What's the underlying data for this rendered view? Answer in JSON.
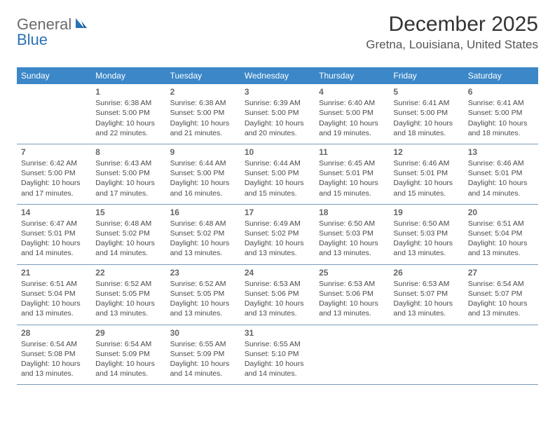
{
  "brand": {
    "part1": "General",
    "part2": "Blue"
  },
  "title": "December 2025",
  "location": "Gretna, Louisiana, United States",
  "colors": {
    "header_bg": "#3b87c8",
    "header_text": "#ffffff",
    "border": "#7a9bb8",
    "brand_gray": "#6a6a6a",
    "brand_blue": "#2a72b5",
    "title_color": "#333333",
    "text": "#4a4a4a"
  },
  "weekdays": [
    "Sunday",
    "Monday",
    "Tuesday",
    "Wednesday",
    "Thursday",
    "Friday",
    "Saturday"
  ],
  "weeks": [
    [
      null,
      {
        "d": "1",
        "sr": "6:38 AM",
        "ss": "5:00 PM",
        "dl": "10 hours and 22 minutes."
      },
      {
        "d": "2",
        "sr": "6:38 AM",
        "ss": "5:00 PM",
        "dl": "10 hours and 21 minutes."
      },
      {
        "d": "3",
        "sr": "6:39 AM",
        "ss": "5:00 PM",
        "dl": "10 hours and 20 minutes."
      },
      {
        "d": "4",
        "sr": "6:40 AM",
        "ss": "5:00 PM",
        "dl": "10 hours and 19 minutes."
      },
      {
        "d": "5",
        "sr": "6:41 AM",
        "ss": "5:00 PM",
        "dl": "10 hours and 18 minutes."
      },
      {
        "d": "6",
        "sr": "6:41 AM",
        "ss": "5:00 PM",
        "dl": "10 hours and 18 minutes."
      }
    ],
    [
      {
        "d": "7",
        "sr": "6:42 AM",
        "ss": "5:00 PM",
        "dl": "10 hours and 17 minutes."
      },
      {
        "d": "8",
        "sr": "6:43 AM",
        "ss": "5:00 PM",
        "dl": "10 hours and 17 minutes."
      },
      {
        "d": "9",
        "sr": "6:44 AM",
        "ss": "5:00 PM",
        "dl": "10 hours and 16 minutes."
      },
      {
        "d": "10",
        "sr": "6:44 AM",
        "ss": "5:00 PM",
        "dl": "10 hours and 15 minutes."
      },
      {
        "d": "11",
        "sr": "6:45 AM",
        "ss": "5:01 PM",
        "dl": "10 hours and 15 minutes."
      },
      {
        "d": "12",
        "sr": "6:46 AM",
        "ss": "5:01 PM",
        "dl": "10 hours and 15 minutes."
      },
      {
        "d": "13",
        "sr": "6:46 AM",
        "ss": "5:01 PM",
        "dl": "10 hours and 14 minutes."
      }
    ],
    [
      {
        "d": "14",
        "sr": "6:47 AM",
        "ss": "5:01 PM",
        "dl": "10 hours and 14 minutes."
      },
      {
        "d": "15",
        "sr": "6:48 AM",
        "ss": "5:02 PM",
        "dl": "10 hours and 14 minutes."
      },
      {
        "d": "16",
        "sr": "6:48 AM",
        "ss": "5:02 PM",
        "dl": "10 hours and 13 minutes."
      },
      {
        "d": "17",
        "sr": "6:49 AM",
        "ss": "5:02 PM",
        "dl": "10 hours and 13 minutes."
      },
      {
        "d": "18",
        "sr": "6:50 AM",
        "ss": "5:03 PM",
        "dl": "10 hours and 13 minutes."
      },
      {
        "d": "19",
        "sr": "6:50 AM",
        "ss": "5:03 PM",
        "dl": "10 hours and 13 minutes."
      },
      {
        "d": "20",
        "sr": "6:51 AM",
        "ss": "5:04 PM",
        "dl": "10 hours and 13 minutes."
      }
    ],
    [
      {
        "d": "21",
        "sr": "6:51 AM",
        "ss": "5:04 PM",
        "dl": "10 hours and 13 minutes."
      },
      {
        "d": "22",
        "sr": "6:52 AM",
        "ss": "5:05 PM",
        "dl": "10 hours and 13 minutes."
      },
      {
        "d": "23",
        "sr": "6:52 AM",
        "ss": "5:05 PM",
        "dl": "10 hours and 13 minutes."
      },
      {
        "d": "24",
        "sr": "6:53 AM",
        "ss": "5:06 PM",
        "dl": "10 hours and 13 minutes."
      },
      {
        "d": "25",
        "sr": "6:53 AM",
        "ss": "5:06 PM",
        "dl": "10 hours and 13 minutes."
      },
      {
        "d": "26",
        "sr": "6:53 AM",
        "ss": "5:07 PM",
        "dl": "10 hours and 13 minutes."
      },
      {
        "d": "27",
        "sr": "6:54 AM",
        "ss": "5:07 PM",
        "dl": "10 hours and 13 minutes."
      }
    ],
    [
      {
        "d": "28",
        "sr": "6:54 AM",
        "ss": "5:08 PM",
        "dl": "10 hours and 13 minutes."
      },
      {
        "d": "29",
        "sr": "6:54 AM",
        "ss": "5:09 PM",
        "dl": "10 hours and 14 minutes."
      },
      {
        "d": "30",
        "sr": "6:55 AM",
        "ss": "5:09 PM",
        "dl": "10 hours and 14 minutes."
      },
      {
        "d": "31",
        "sr": "6:55 AM",
        "ss": "5:10 PM",
        "dl": "10 hours and 14 minutes."
      },
      null,
      null,
      null
    ]
  ],
  "labels": {
    "sunrise": "Sunrise:",
    "sunset": "Sunset:",
    "daylight": "Daylight:"
  }
}
